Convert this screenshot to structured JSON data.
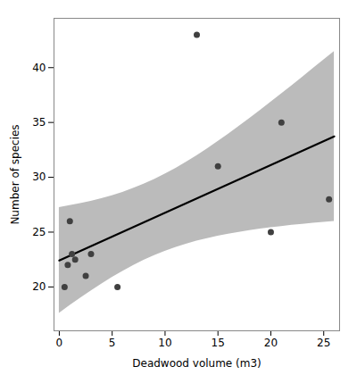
{
  "chart_data": {
    "type": "scatter",
    "xlabel": "Deadwood volume (m3)",
    "ylabel": "Number of species",
    "xlim": [
      -0.5,
      26.5
    ],
    "ylim": [
      16,
      44.5
    ],
    "xticks": [
      0,
      5,
      10,
      15,
      20,
      25
    ],
    "yticks": [
      20,
      25,
      30,
      35,
      40
    ],
    "grid": false,
    "series": [
      {
        "type": "area",
        "color": "#bbbbbb",
        "x": [
          0,
          1,
          2,
          3,
          4,
          5,
          6,
          7,
          8,
          9,
          10,
          11,
          12,
          13,
          14,
          15,
          16,
          17,
          18,
          19,
          20,
          21,
          22,
          23,
          24,
          25,
          26
        ],
        "lower": [
          17.5893,
          18.291,
          18.9729,
          19.6313,
          20.2623,
          20.8614,
          21.4244,
          21.9474,
          22.4272,
          22.8621,
          23.2523,
          23.5993,
          23.9062,
          24.177,
          24.416,
          24.6275,
          24.8156,
          24.9838,
          25.1354,
          25.2728,
          25.3983,
          25.5137,
          25.6206,
          25.7202,
          25.8024,
          25.9014,
          25.9847
        ],
        "upper": [
          27.247,
          27.4152,
          27.6033,
          27.8148,
          28.0538,
          28.3246,
          28.6315,
          28.9785,
          29.3687,
          29.8036,
          30.2834,
          30.8063,
          31.3694,
          31.9685,
          32.5995,
          33.2579,
          33.9398,
          34.6415,
          35.3599,
          36.0924,
          36.8368,
          37.5913,
          38.3544,
          39.1247,
          39.9124,
          40.6833,
          41.47
        ]
      },
      {
        "type": "line",
        "color": "#000000",
        "x": [
          0,
          26
        ],
        "values": [
          22.41814,
          33.72736
        ]
      },
      {
        "type": "scatter",
        "color": "#404040",
        "x": [
          0.5,
          0.8,
          1.0,
          1.2,
          1.5,
          2.5,
          3.0,
          5.5,
          13.0,
          15.0,
          20.0,
          21.0,
          25.5
        ],
        "values": [
          20.0,
          22.0,
          26.0,
          23.0,
          22.5,
          21.0,
          23.0,
          20.0,
          43.0,
          31.0,
          25.0,
          35.0,
          28.0
        ]
      }
    ]
  }
}
